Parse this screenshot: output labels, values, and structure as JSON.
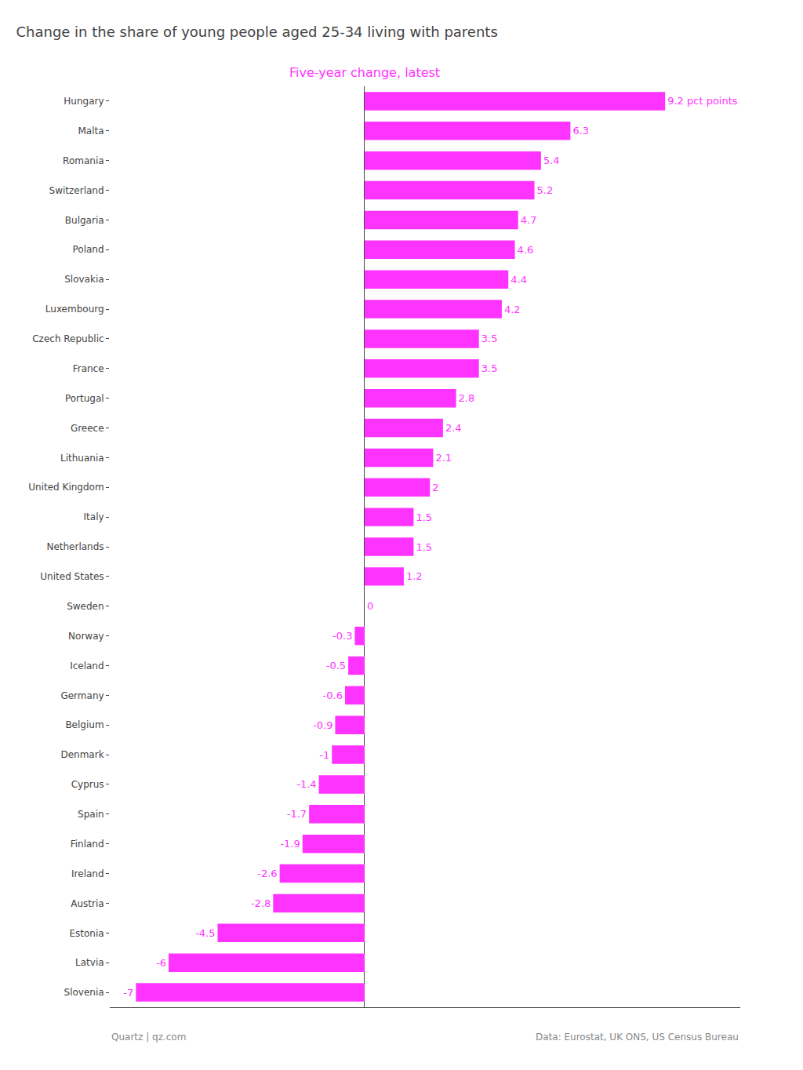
{
  "chart_data": {
    "type": "bar",
    "orientation": "horizontal",
    "title": "Change in the share of young people aged 25-34 living with parents",
    "subtitle": "Five-year change, latest",
    "annotations": [
      "Quartz | qz.com",
      "Data: Eurostat, UK ONS, US Census Bureau"
    ],
    "categories": [
      "Hungary",
      "Malta",
      "Romania",
      "Switzerland",
      "Bulgaria",
      "Poland",
      "Slovakia",
      "Luxembourg",
      "Czech Republic",
      "France",
      "Portugal",
      "Greece",
      "Lithuania",
      "United Kingdom",
      "Italy",
      "Netherlands",
      "United States",
      "Sweden",
      "Norway",
      "Iceland",
      "Germany",
      "Belgium",
      "Denmark",
      "Cyprus",
      "Spain",
      "Finland",
      "Ireland",
      "Austria",
      "Estonia",
      "Latvia",
      "Slovenia"
    ],
    "values": [
      9.2,
      6.3,
      5.4,
      5.2,
      4.7,
      4.6,
      4.4,
      4.2,
      3.5,
      3.5,
      2.8,
      2.4,
      2.1,
      2.0,
      1.5,
      1.5,
      1.2,
      0.0,
      -0.3,
      -0.5,
      -0.6,
      -0.9,
      -1.0,
      -1.4,
      -1.7,
      -1.9,
      -2.6,
      -2.8,
      -4.5,
      -6.0,
      -7.0
    ],
    "value_labels": [
      "9.2 pct points",
      "6.3",
      "5.4",
      "5.2",
      "4.7",
      "4.6",
      "4.4",
      "4.2",
      "3.5",
      "3.5",
      "2.8",
      "2.4",
      "2.1",
      "2",
      "1.5",
      "1.5",
      "1.2",
      "0",
      "-0.3",
      "-0.5",
      "-0.6",
      "-0.9",
      "-1",
      "-1.4",
      "-1.7",
      "-1.9",
      "-2.6",
      "-2.8",
      "-4.5",
      "-6",
      "-7"
    ],
    "color": "#ff33ff",
    "xlim": [
      -7.8,
      11.5
    ],
    "data_labels": true,
    "tick_labels": "y",
    "grid": false
  }
}
